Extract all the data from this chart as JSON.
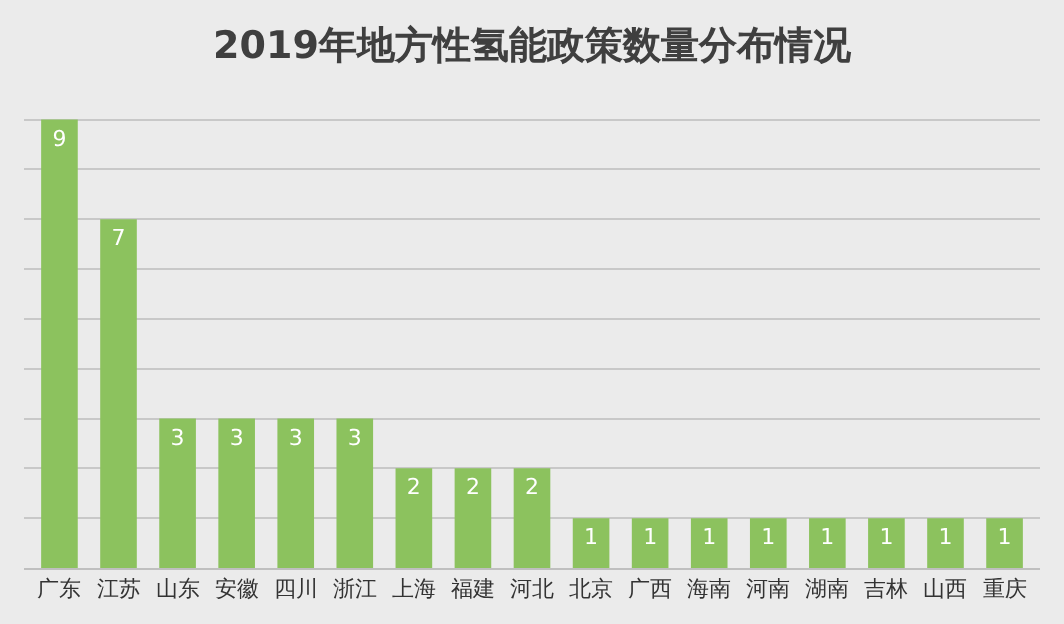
{
  "chart_data": {
    "type": "bar",
    "title": "2019年地方性氢能政策数量分布情况",
    "categories": [
      "广东",
      "江苏",
      "山东",
      "安徽",
      "四川",
      "浙江",
      "上海",
      "福建",
      "河北",
      "北京",
      "广西",
      "海南",
      "河南",
      "湖南",
      "吉林",
      "山西",
      "重庆"
    ],
    "values": [
      9,
      7,
      3,
      3,
      3,
      3,
      2,
      2,
      2,
      1,
      1,
      1,
      1,
      1,
      1,
      1,
      1
    ],
    "color": "#8cc25e",
    "data_labels": true,
    "yticks": [
      {
        "value": 0,
        "label": null
      },
      {
        "value": 1,
        "label": null
      },
      {
        "value": 2,
        "label": null
      },
      {
        "value": 3,
        "label": null
      },
      {
        "value": 4,
        "label": null
      },
      {
        "value": 5,
        "label": null
      },
      {
        "value": 6,
        "label": null
      },
      {
        "value": 7,
        "label": null
      },
      {
        "value": 8,
        "label": null
      },
      {
        "value": 9,
        "label": null
      }
    ],
    "tick_labels": "x",
    "grid": "y"
  }
}
